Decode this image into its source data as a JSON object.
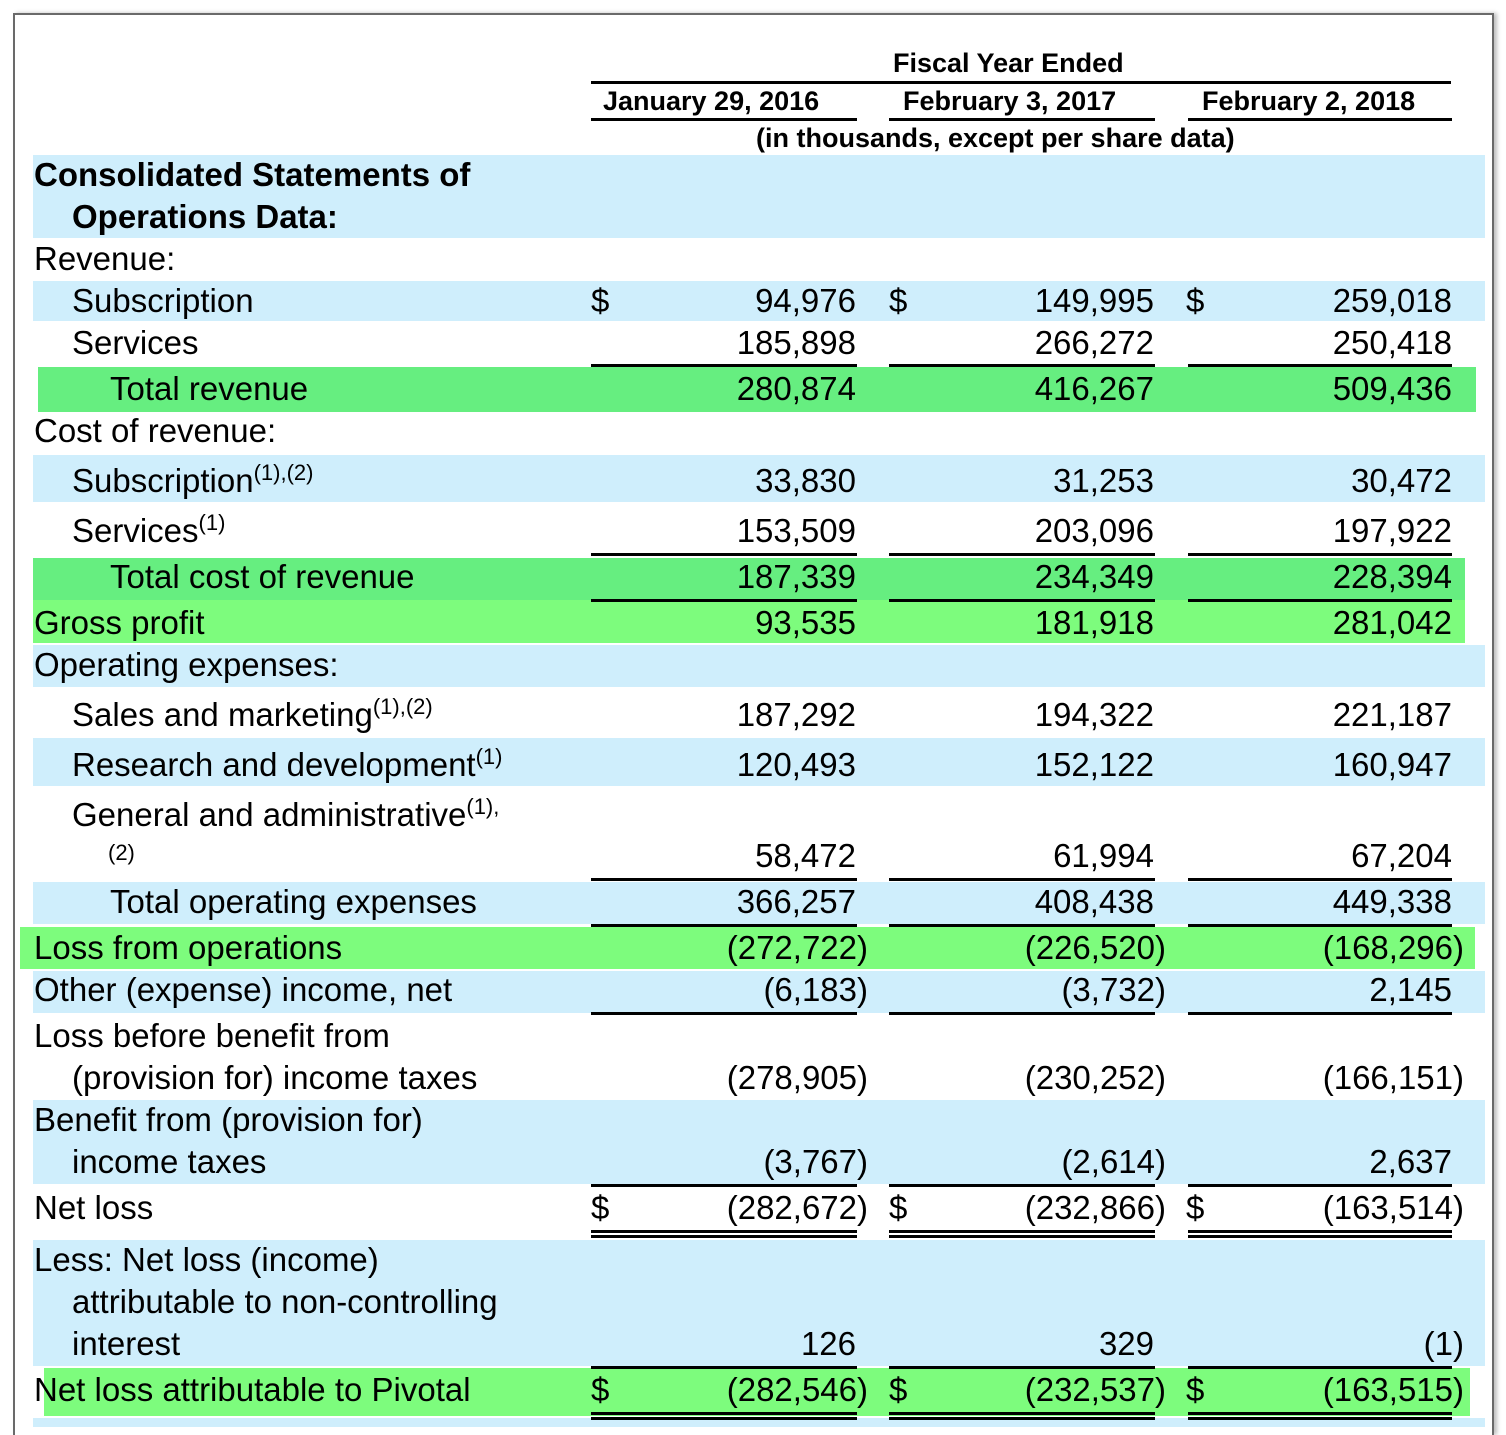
{
  "header": {
    "group": "Fiscal Year Ended",
    "columns": [
      "January 29, 2016",
      "February 3, 2017",
      "February 2, 2018"
    ],
    "units": "(in thousands, except per share data)"
  },
  "rows": {
    "section_title_1": "Consolidated Statements of",
    "section_title_2": "Operations Data:",
    "revenue": "Revenue:",
    "subscription": {
      "label": "Subscription",
      "v": [
        "94,976",
        "149,995",
        "259,018"
      ]
    },
    "services": {
      "label": "Services",
      "v": [
        "185,898",
        "266,272",
        "250,418"
      ]
    },
    "total_revenue": {
      "label": "Total revenue",
      "v": [
        "280,874",
        "416,267",
        "509,436"
      ]
    },
    "cost_of_revenue": "Cost of revenue:",
    "cor_subscription": {
      "label": "Subscription",
      "note": "(1),(2)",
      "v": [
        "33,830",
        "31,253",
        "30,472"
      ]
    },
    "cor_services": {
      "label": "Services",
      "note": "(1)",
      "v": [
        "153,509",
        "203,096",
        "197,922"
      ]
    },
    "total_cor": {
      "label": "Total cost of revenue",
      "v": [
        "187,339",
        "234,349",
        "228,394"
      ]
    },
    "gross_profit": {
      "label": "Gross profit",
      "v": [
        "93,535",
        "181,918",
        "281,042"
      ]
    },
    "opex": "Operating expenses:",
    "sales_marketing": {
      "label": "Sales and marketing",
      "note": "(1),(2)",
      "v": [
        "187,292",
        "194,322",
        "221,187"
      ]
    },
    "rnd": {
      "label": "Research and development",
      "note": "(1)",
      "v": [
        "120,493",
        "152,122",
        "160,947"
      ]
    },
    "gna": {
      "label": "General and administrative",
      "note": "(1),",
      "note2": "(2)",
      "v": [
        "58,472",
        "61,994",
        "67,204"
      ]
    },
    "total_opex": {
      "label": "Total operating expenses",
      "v": [
        "366,257",
        "408,438",
        "449,338"
      ]
    },
    "loss_ops": {
      "label": "Loss from operations",
      "v": [
        "(272,722)",
        "(226,520)",
        "(168,296)"
      ]
    },
    "other_income": {
      "label": "Other (expense) income, net",
      "v": [
        "(6,183)",
        "(3,732)",
        "2,145"
      ]
    },
    "loss_before_1": "Loss before benefit from",
    "loss_before_2": "(provision for) income taxes",
    "loss_before_v": [
      "(278,905)",
      "(230,252)",
      "(166,151)"
    ],
    "benefit_1": "Benefit from (provision for)",
    "benefit_2": "income taxes",
    "benefit_v": [
      "(3,767)",
      "(2,614)",
      "2,637"
    ],
    "net_loss": {
      "label": "Net loss",
      "v": [
        "(282,672)",
        "(232,866)",
        "(163,514)"
      ]
    },
    "nci_1": "Less: Net loss (income)",
    "nci_2": "attributable to non-controlling",
    "nci_3": "interest",
    "nci_v": [
      "126",
      "329",
      "(1)"
    ],
    "net_loss_pivotal": {
      "label": "Net loss attributable to Pivotal",
      "v": [
        "(282,546)",
        "(232,537)",
        "(163,515)"
      ]
    },
    "dollar": "$"
  },
  "colors": {
    "band_blue": "#cfeefc",
    "band_green": "#66ee80",
    "band_green_light": "#7dfc7d"
  }
}
